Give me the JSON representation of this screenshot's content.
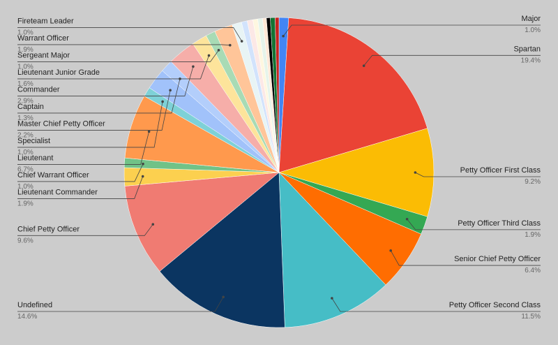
{
  "chart_data": {
    "type": "pie",
    "categories": [
      "Major",
      "Spartan",
      "Petty Officer First Class",
      "Petty Officer Third Class",
      "Senior Chief Petty Officer",
      "Petty Officer Second Class",
      "Undefined",
      "Chief Petty Officer",
      "Lieutenant Commander",
      "Chief Warrant Officer",
      "Lieutenant",
      "Specialist",
      "Master Chief Petty Officer",
      "Captain",
      "Commander",
      "Lieutenant Junior Grade",
      "Sergeant Major",
      "Warrant Officer",
      "Fireteam Leader",
      null,
      null,
      null,
      null,
      null,
      null,
      null,
      null
    ],
    "values": [
      1.0,
      19.4,
      9.2,
      1.9,
      6.4,
      11.5,
      14.6,
      9.6,
      1.9,
      1.0,
      6.7,
      1.0,
      2.2,
      1.3,
      2.9,
      1.6,
      1.0,
      1.9,
      1.0,
      0.6,
      0.6,
      0.5,
      0.5,
      0.4,
      0.4,
      0.5,
      0.4
    ],
    "value_labels": [
      "1.0%",
      "19.4%",
      "9.2%",
      "1.9%",
      "6.4%",
      "11.5%",
      "14.6%",
      "9.6%",
      "1.9%",
      "1.0%",
      "6.7%",
      "1.0%",
      "2.2%",
      "1.3%",
      "2.9%",
      "1.6%",
      "1.0%",
      "1.9%",
      "1.0%",
      null,
      null,
      null,
      null,
      null,
      null,
      null,
      null
    ],
    "colors": [
      "#4285f4",
      "#ea4335",
      "#fbbc04",
      "#34a853",
      "#ff6d01",
      "#46bdc6",
      "#0b3561",
      "#f07b72",
      "#fcd04f",
      "#71c287",
      "#ff994d",
      "#7ed1d7",
      "#a1c2fa",
      "#b3cefb",
      "#f6aea9",
      "#fde49b",
      "#a8dbb5",
      "#ffc599",
      "#e8f4f5",
      "#d2e3fc",
      "#fce8e6",
      "#fef7e0",
      "#e6f4ea",
      "#ffe8d6",
      "#000000",
      "#137333",
      "#c5221f"
    ]
  }
}
